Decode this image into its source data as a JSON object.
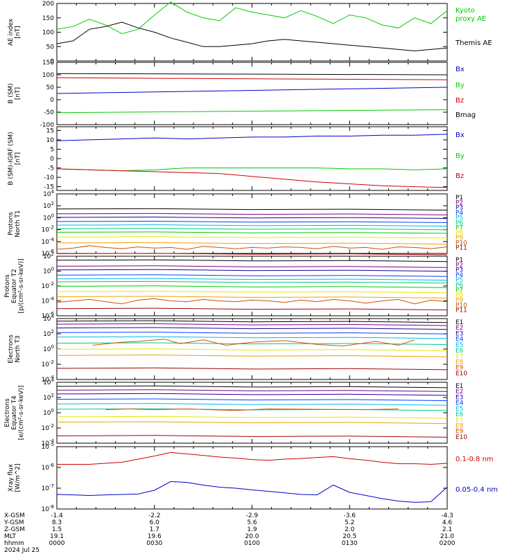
{
  "title": "",
  "date_label": "2024 Jul 25",
  "colors": {
    "black": "#000000",
    "green": "#00cc00",
    "blue": "#0000cc",
    "red": "#cc0000",
    "p_series": [
      "#000000",
      "#7a007a",
      "#1a00a0",
      "#0040ff",
      "#00b8e8",
      "#00c880",
      "#00cc00",
      "#e8e800",
      "#f0a000",
      "#d05000",
      "#a00000"
    ],
    "e_series": [
      "#000000",
      "#7a007a",
      "#1a00a0",
      "#0040ff",
      "#00b8e8",
      "#00c880",
      "#e8e800",
      "#f0a000",
      "#d05000",
      "#a00000"
    ]
  },
  "x_axis": {
    "rows": [
      {
        "label": "X-GSM",
        "values": [
          "-1.4",
          "-2.2",
          "-2.9",
          "-3.6",
          "-4.3"
        ]
      },
      {
        "label": "Y-GSM",
        "values": [
          "8.3",
          "6.0",
          "5.6",
          "5.2",
          "4.6"
        ]
      },
      {
        "label": "Z-GSM",
        "values": [
          "1.5",
          "1.7",
          "1.9",
          "2.0",
          "2.1"
        ]
      },
      {
        "label": "MLT",
        "values": [
          "19.1",
          "19.6",
          "20.0",
          "20.5",
          "21.0"
        ]
      },
      {
        "label": "hhmm",
        "values": [
          "0000",
          "0030",
          "0100",
          "0130",
          "0200"
        ]
      }
    ]
  },
  "chart_data": [
    {
      "id": "ae",
      "type": "line",
      "ylabel": "AE index\n[nT]",
      "ylim": [
        0,
        200
      ],
      "yticks": [
        "0",
        "50",
        "100",
        "150",
        "200"
      ],
      "log": false,
      "x": [
        0,
        5,
        10,
        15,
        20,
        25,
        30,
        35,
        40,
        45,
        50,
        55,
        60,
        65,
        70,
        75,
        80,
        85,
        90,
        95,
        100,
        105,
        110,
        115,
        120
      ],
      "series": [
        {
          "name": "Kyoto\nproxy AE",
          "color": "#00cc00",
          "values": [
            110,
            120,
            145,
            125,
            95,
            110,
            160,
            205,
            170,
            150,
            140,
            185,
            170,
            160,
            150,
            175,
            155,
            130,
            160,
            150,
            125,
            115,
            150,
            130,
            175
          ]
        },
        {
          "name": "Themis AE",
          "color": "#000000",
          "values": [
            60,
            70,
            110,
            120,
            135,
            115,
            100,
            80,
            65,
            50,
            50,
            55,
            60,
            70,
            75,
            70,
            65,
            60,
            55,
            50,
            45,
            40,
            35,
            40,
            45
          ]
        }
      ]
    },
    {
      "id": "bsm",
      "type": "line",
      "ylabel": "B (SM)\n[nT]",
      "ylim": [
        -100,
        150
      ],
      "yticks": [
        "-100",
        "-50",
        "0",
        "50",
        "100",
        "150"
      ],
      "log": false,
      "x": [
        0,
        120
      ],
      "series": [
        {
          "name": "Bx",
          "color": "#0000cc",
          "values": [
            25,
            50
          ]
        },
        {
          "name": "By",
          "color": "#00cc00",
          "values": [
            -52,
            -40
          ]
        },
        {
          "name": "Bz",
          "color": "#cc0000",
          "values": [
            88,
            80
          ]
        },
        {
          "name": "Bmag",
          "color": "#000000",
          "values": [
            105,
            100
          ]
        }
      ]
    },
    {
      "id": "bigrf",
      "type": "line",
      "ylabel": "B (SM)-IGRF (SM)\n[nT]",
      "ylim": [
        -17,
        17
      ],
      "yticks": [
        "-15",
        "-10",
        "-5",
        "0",
        "5",
        "10",
        "15"
      ],
      "tick_values": [
        -15,
        -10,
        -5,
        0,
        5,
        10,
        15
      ],
      "log": false,
      "x": [
        0,
        10,
        20,
        30,
        40,
        50,
        60,
        70,
        80,
        90,
        100,
        110,
        120
      ],
      "series": [
        {
          "name": "Bx",
          "color": "#0000cc",
          "values": [
            9.5,
            10,
            10.5,
            11,
            10.5,
            11,
            11.5,
            11.5,
            12,
            12,
            12.5,
            12.5,
            13
          ]
        },
        {
          "name": "By",
          "color": "#00cc00",
          "values": [
            -5.5,
            -6,
            -6.5,
            -6,
            -5,
            -5,
            -5,
            -5,
            -5,
            -5.5,
            -5.5,
            -6,
            -5.5
          ]
        },
        {
          "name": "Bz",
          "color": "#cc0000",
          "values": [
            -5.5,
            -6,
            -6.5,
            -7,
            -7.5,
            -8,
            -9.5,
            -11,
            -12.5,
            -13.5,
            -14.5,
            -15,
            -15.5
          ]
        }
      ]
    },
    {
      "id": "pnorth",
      "type": "line",
      "ylabel": "Protons\nNorth T1",
      "log": true,
      "ylim_exp": [
        -6,
        4
      ],
      "yticks_exp": [
        -6,
        -4,
        -2,
        0,
        2,
        4
      ],
      "series_names": [
        "P1",
        "P2",
        "P3",
        "P4",
        "P5",
        "P6",
        "P7",
        "P8",
        "P9",
        "P10",
        "P11"
      ],
      "levels_exp": [
        1.5,
        0.7,
        0.1,
        -0.6,
        -1.2,
        -1.8,
        -2.4,
        -3.2,
        -4.2,
        -5,
        -6
      ],
      "trace_exp_x": [
        0,
        5,
        10,
        15,
        20,
        25,
        30,
        35,
        40,
        45,
        50,
        55,
        60,
        65,
        70,
        75,
        80,
        85,
        90,
        95,
        100,
        105,
        110,
        115,
        120
      ],
      "trace_exp_y": [
        -4.3,
        -4.1,
        -3.7,
        -4.0,
        -4.2,
        -3.9,
        -4.1,
        -4.0,
        -4.3,
        -3.8,
        -4.0,
        -4.2,
        -4.0,
        -4.1,
        -3.9,
        -4.0,
        -4.2,
        -3.8,
        -4.1,
        -4.0,
        -4.3,
        -3.9,
        -4.0,
        -4.2,
        -3.9
      ]
    },
    {
      "id": "pequator",
      "type": "line",
      "ylabel": "Protons\nEquator T2\n[p/(cm²-s-sr-keV)]",
      "log": true,
      "ylim_exp": [
        -6,
        2
      ],
      "yticks_exp": [
        -6,
        -4,
        -2,
        0,
        2
      ],
      "series_names": [
        "P1",
        "P2",
        "P3",
        "P4",
        "P5",
        "P6",
        "P7",
        "P8",
        "P9",
        "P10",
        "P11"
      ],
      "levels_exp": [
        1.5,
        0.7,
        0.2,
        -0.5,
        -1.0,
        -1.4,
        -2.0,
        -2.7,
        -3.4,
        -4.0,
        -5.0
      ],
      "trace_exp_x": [
        0,
        5,
        10,
        15,
        20,
        25,
        30,
        35,
        40,
        45,
        50,
        55,
        60,
        65,
        70,
        75,
        80,
        85,
        90,
        95,
        100,
        105,
        110,
        115,
        120
      ],
      "trace_exp_y": [
        -4.2,
        -4.0,
        -3.8,
        -4.1,
        -4.4,
        -3.9,
        -3.7,
        -4.0,
        -4.1,
        -3.8,
        -4.0,
        -4.1,
        -3.9,
        -4.0,
        -4.2,
        -3.9,
        -4.1,
        -3.8,
        -4.0,
        -4.3,
        -4.0,
        -3.8,
        -4.4,
        -3.9,
        -4.1
      ]
    },
    {
      "id": "enorth",
      "type": "line",
      "ylabel": "Electrons\nNorth T3",
      "log": true,
      "ylim_exp": [
        -4,
        4
      ],
      "yticks_exp": [
        -4,
        -2,
        0,
        2,
        4
      ],
      "series_names": [
        "E1",
        "E2",
        "E3",
        "E4",
        "E5",
        "E6",
        "E7",
        "E8",
        "E9",
        "E10"
      ],
      "levels_exp": [
        3.7,
        3.3,
        2.8,
        2.2,
        1.6,
        0.8,
        0.0,
        -0.8,
        -1.5,
        -2.5
      ],
      "trace_exp_x": [
        11,
        20,
        25,
        33,
        38,
        45,
        52,
        60,
        70,
        80,
        88,
        98,
        105,
        110
      ],
      "trace_exp_y": [
        -2.0,
        -1.6,
        -1.5,
        -1.2,
        -1.8,
        -1.3,
        -2.0,
        -1.6,
        -1.4,
        -1.9,
        -2.1,
        -1.5,
        -2.0,
        -1.3
      ]
    },
    {
      "id": "eequator",
      "type": "line",
      "ylabel": "Electrons\nEquator T4\n[e/(cm²-s-sr-keV)]",
      "log": true,
      "ylim_exp": [
        -4,
        4
      ],
      "yticks_exp": [
        -4,
        -2,
        0,
        2,
        4
      ],
      "series_names": [
        "E1",
        "E2",
        "E3",
        "E4",
        "E5",
        "E6",
        "E7",
        "E8",
        "E9",
        "E10"
      ],
      "levels_exp": [
        3.5,
        3.0,
        2.5,
        1.8,
        1.2,
        0.5,
        -0.5,
        -1.2,
        -2.0,
        -3.0
      ],
      "trace_exp_x": [
        15,
        22,
        30,
        40,
        55,
        65,
        95,
        105
      ],
      "trace_exp_y": [
        -1.6,
        -1.5,
        -1.6,
        -1.5,
        -1.7,
        -1.5,
        -1.6,
        -1.5
      ]
    },
    {
      "id": "xray",
      "type": "line",
      "ylabel": "Xray flux\n[W/m^2]",
      "log": true,
      "ylim_exp": [
        -8,
        -5
      ],
      "yticks_exp": [
        -8,
        -7,
        -6,
        -5
      ],
      "x": [
        0,
        5,
        10,
        15,
        20,
        25,
        30,
        35,
        40,
        45,
        50,
        55,
        60,
        65,
        70,
        75,
        80,
        85,
        90,
        95,
        100,
        105,
        110,
        115,
        120
      ],
      "series": [
        {
          "name": "0.1-0.8 nm",
          "color": "#cc0000",
          "values_exp": [
            -5.85,
            -5.85,
            -5.85,
            -5.8,
            -5.75,
            -5.6,
            -5.45,
            -5.28,
            -5.35,
            -5.42,
            -5.5,
            -5.55,
            -5.62,
            -5.66,
            -5.6,
            -5.57,
            -5.52,
            -5.48,
            -5.58,
            -5.65,
            -5.75,
            -5.82,
            -5.82,
            -5.85,
            -5.8
          ]
        },
        {
          "name": "0.05-0.4 nm",
          "color": "#0000cc",
          "values_exp": [
            -7.3,
            -7.32,
            -7.35,
            -7.32,
            -7.3,
            -7.28,
            -7.1,
            -6.68,
            -6.72,
            -6.85,
            -6.95,
            -7.0,
            -7.08,
            -7.15,
            -7.22,
            -7.3,
            -7.32,
            -6.85,
            -7.2,
            -7.35,
            -7.5,
            -7.62,
            -7.68,
            -7.65,
            -6.95
          ]
        }
      ]
    }
  ]
}
